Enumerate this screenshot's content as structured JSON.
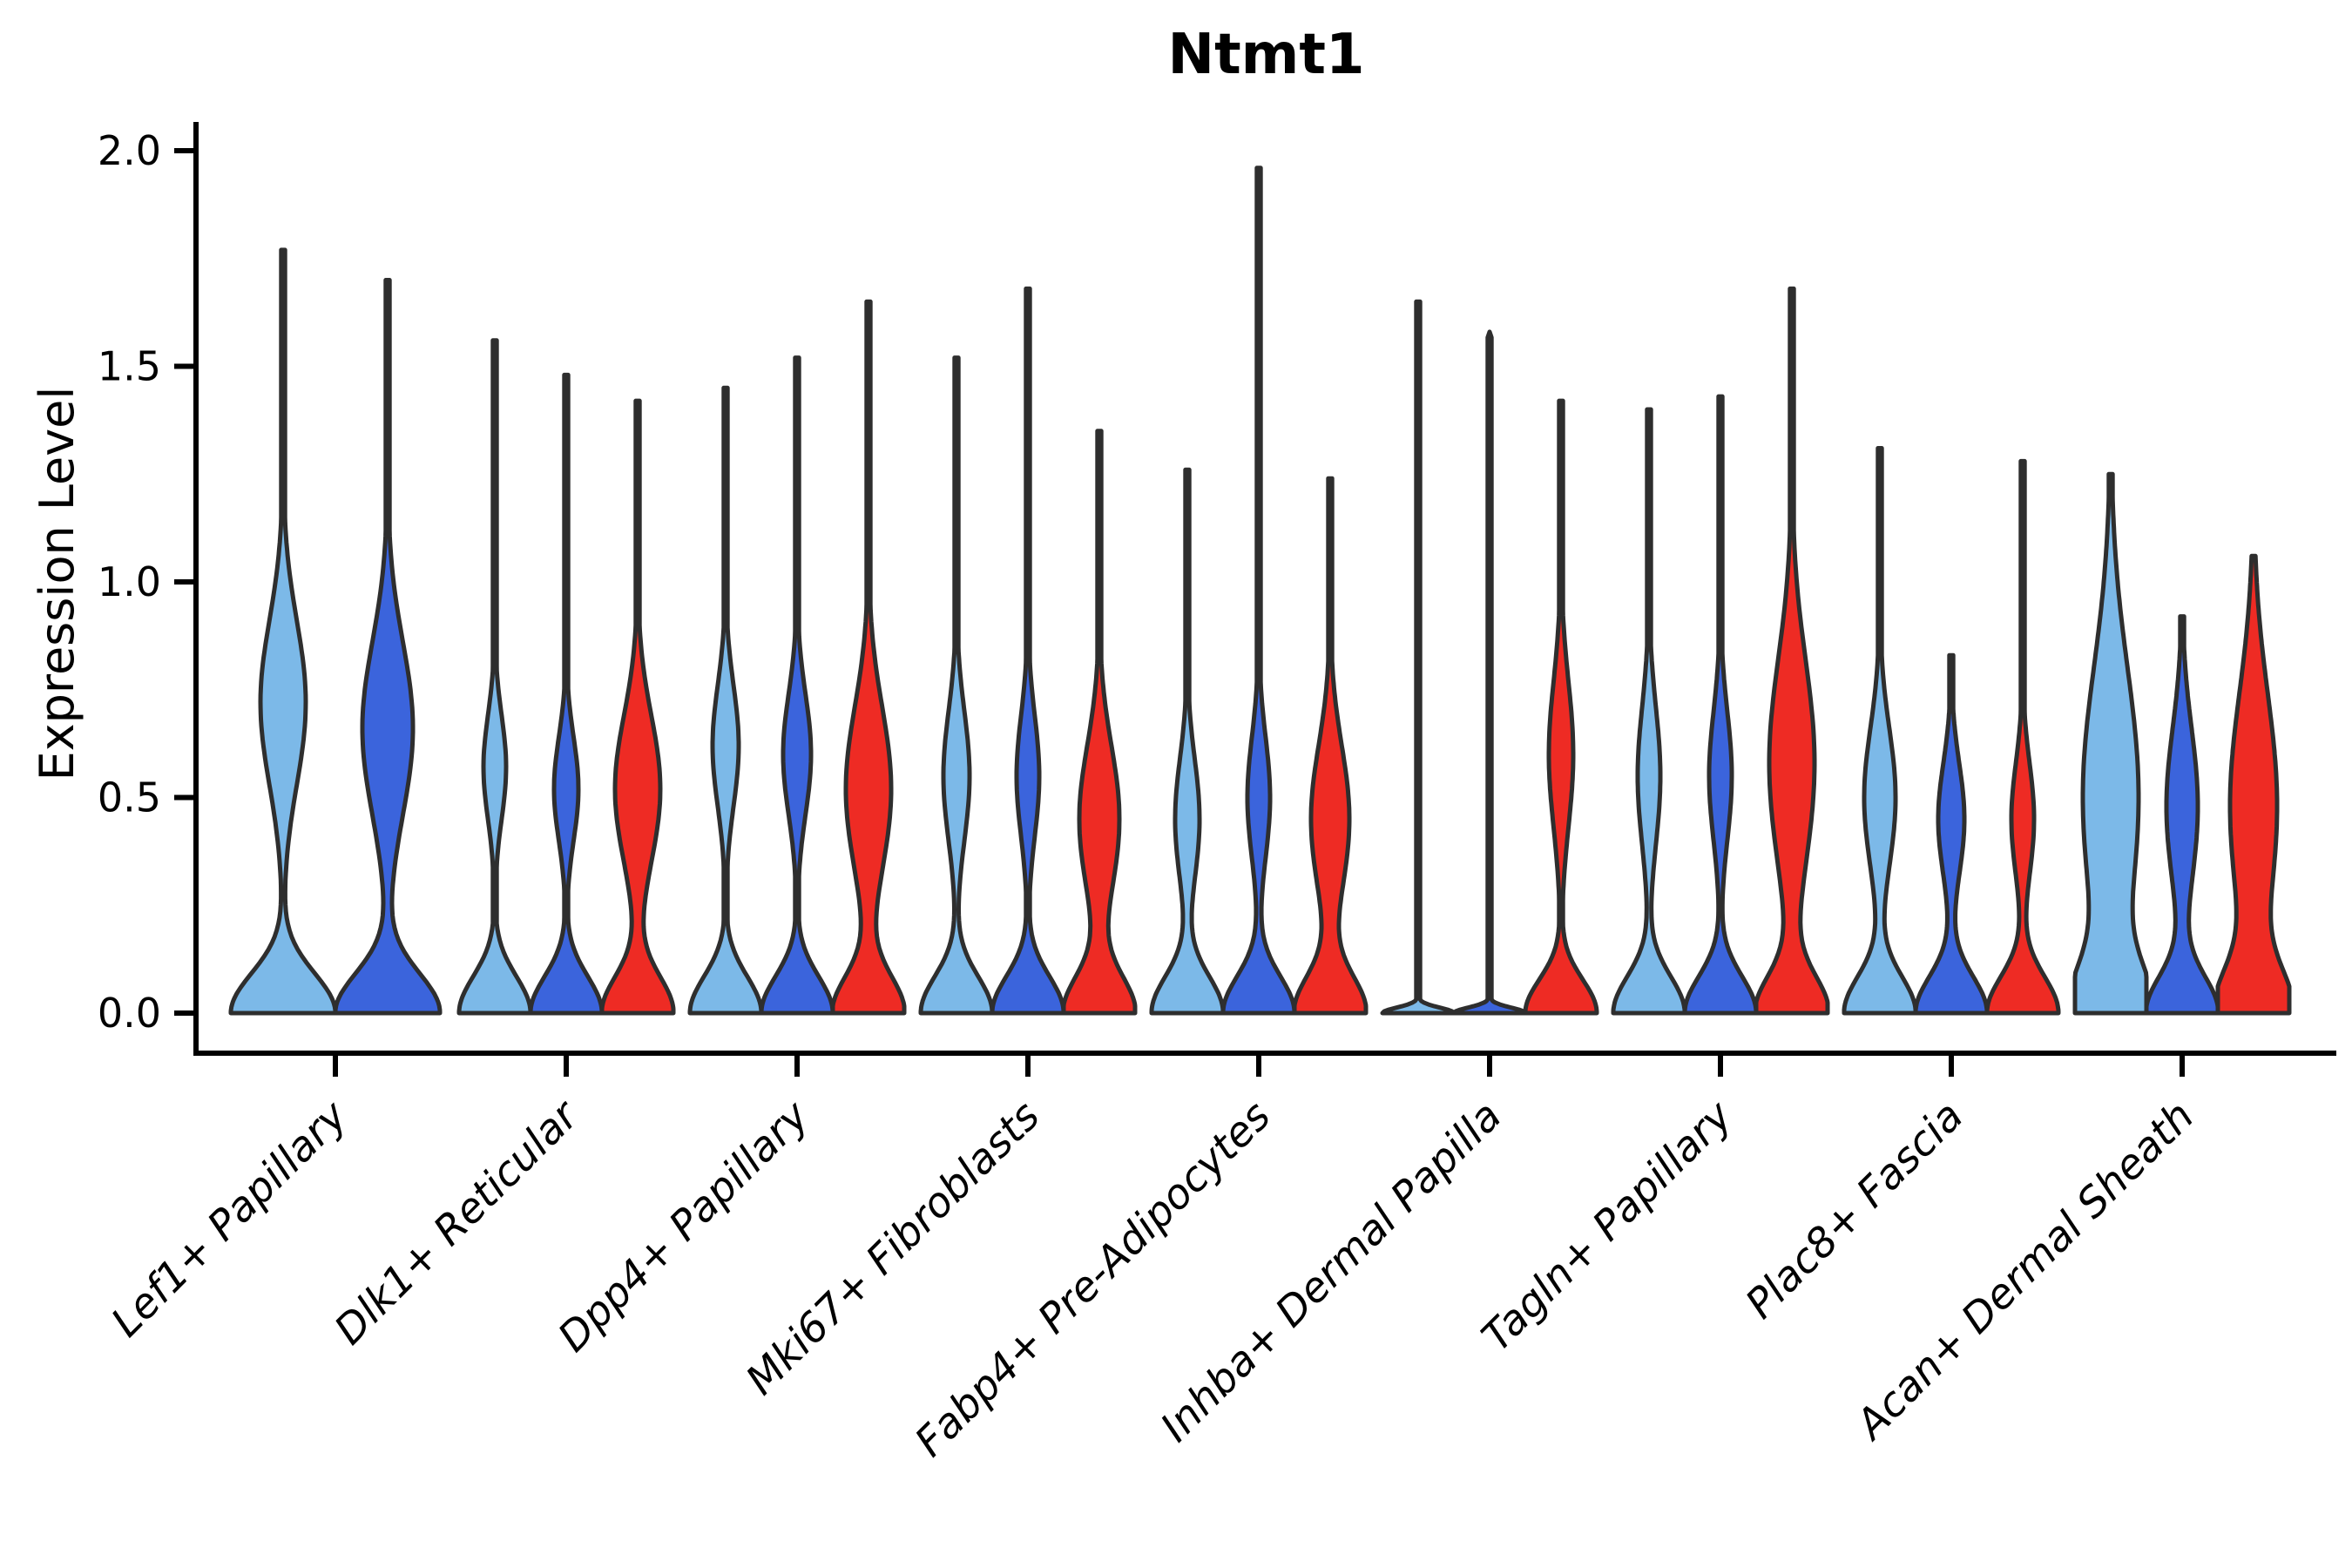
{
  "chart_data": {
    "type": "violin",
    "title": "Ntmt1",
    "ylabel": "Expression Level",
    "ylim": [
      0.0,
      2.0
    ],
    "grid": false,
    "legend": "none",
    "yticks": [
      {
        "label": "0.0",
        "value": 0.0
      },
      {
        "label": "0.5",
        "value": 0.5
      },
      {
        "label": "1.0",
        "value": 1.0
      },
      {
        "label": "1.5",
        "value": 1.5
      },
      {
        "label": "2.0",
        "value": 2.0
      }
    ],
    "categories": [
      "Lef1+ Papillary",
      "Dlk1+ Reticular",
      "Dpp4+ Papillary",
      "Mki67+ Fibroblasts",
      "Fabp4+ Pre-Adipocytes",
      "Inhba+ Dermal Papilla",
      "Tagln+ Papillary",
      "Plac8+ Fascia",
      "Acan+ Dermal Sheath"
    ],
    "split_colors": {
      "light_blue": "#7CB9E8",
      "dark_blue": "#3B64DC",
      "red": "#EE2B24"
    },
    "edge_color": "#2E2E2E",
    "axis_color": "#000000",
    "groups": [
      {
        "label": "Lef1+ Papillary",
        "violins": [
          {
            "split": "light_blue",
            "max": 1.77,
            "peak": 0.72,
            "peak_spread": 0.19,
            "peak_halfwidth": 26,
            "base_decay": 0.13,
            "base_halfwidth": 60
          },
          {
            "split": "dark_blue",
            "max": 1.7,
            "peak": 0.66,
            "peak_spread": 0.2,
            "peak_halfwidth": 29,
            "base_decay": 0.13,
            "base_halfwidth": 60
          }
        ]
      },
      {
        "label": "Dlk1+ Reticular",
        "violins": [
          {
            "split": "light_blue",
            "max": 1.56,
            "peak": 0.57,
            "peak_spread": 0.12,
            "peak_halfwidth": 13,
            "base_decay": 0.12,
            "base_halfwidth": 41
          },
          {
            "split": "dark_blue",
            "max": 1.48,
            "peak": 0.52,
            "peak_spread": 0.12,
            "peak_halfwidth": 14,
            "base_decay": 0.12,
            "base_halfwidth": 41
          },
          {
            "split": "red",
            "max": 1.42,
            "peak": 0.52,
            "peak_spread": 0.17,
            "peak_halfwidth": 26,
            "base_decay": 0.12,
            "base_halfwidth": 41
          }
        ]
      },
      {
        "label": "Dpp4+ Papillary",
        "violins": [
          {
            "split": "light_blue",
            "max": 1.45,
            "peak": 0.62,
            "peak_spread": 0.14,
            "peak_halfwidth": 15,
            "base_decay": 0.12,
            "base_halfwidth": 41
          },
          {
            "split": "dark_blue",
            "max": 1.52,
            "peak": 0.6,
            "peak_spread": 0.14,
            "peak_halfwidth": 16,
            "base_decay": 0.12,
            "base_halfwidth": 41
          },
          {
            "split": "red",
            "max": 1.65,
            "peak": 0.52,
            "peak_spread": 0.19,
            "peak_halfwidth": 26,
            "base_decay": 0.12,
            "base_halfwidth": 41
          }
        ]
      },
      {
        "label": "Mki67+ Fibroblasts",
        "violins": [
          {
            "split": "light_blue",
            "max": 1.52,
            "peak": 0.55,
            "peak_spread": 0.15,
            "peak_halfwidth": 15,
            "base_decay": 0.12,
            "base_halfwidth": 41
          },
          {
            "split": "dark_blue",
            "max": 1.68,
            "peak": 0.55,
            "peak_spread": 0.14,
            "peak_halfwidth": 13,
            "base_decay": 0.12,
            "base_halfwidth": 41
          },
          {
            "split": "red",
            "max": 1.35,
            "peak": 0.45,
            "peak_spread": 0.17,
            "peak_halfwidth": 23,
            "base_decay": 0.12,
            "base_halfwidth": 41
          }
        ]
      },
      {
        "label": "Fabp4+ Pre-Adipocytes",
        "violins": [
          {
            "split": "light_blue",
            "max": 1.26,
            "peak": 0.45,
            "peak_spread": 0.14,
            "peak_halfwidth": 14,
            "base_decay": 0.12,
            "base_halfwidth": 41
          },
          {
            "split": "dark_blue",
            "max": 1.96,
            "peak": 0.5,
            "peak_spread": 0.14,
            "peak_halfwidth": 13,
            "base_decay": 0.12,
            "base_halfwidth": 41
          },
          {
            "split": "red",
            "max": 1.24,
            "peak": 0.45,
            "peak_spread": 0.17,
            "peak_halfwidth": 22,
            "base_decay": 0.12,
            "base_halfwidth": 41
          }
        ]
      },
      {
        "label": "Inhba+ Dermal Papilla",
        "violins": [
          {
            "split": "light_blue",
            "max": 1.65,
            "peak": 0.0,
            "peak_spread": 1.0,
            "peak_halfwidth": 0,
            "base_decay": 0.018,
            "base_halfwidth": 41
          },
          {
            "split": "dark_blue",
            "max": 1.58,
            "peak": 0.0,
            "peak_spread": 1.0,
            "peak_halfwidth": 0,
            "base_decay": 0.018,
            "base_halfwidth": 41
          },
          {
            "split": "red",
            "max": 1.42,
            "peak": 0.6,
            "peak_spread": 0.17,
            "peak_halfwidth": 14,
            "base_decay": 0.11,
            "base_halfwidth": 41
          }
        ]
      },
      {
        "label": "Tagln+ Papillary",
        "violins": [
          {
            "split": "light_blue",
            "max": 1.4,
            "peak": 0.55,
            "peak_spread": 0.16,
            "peak_halfwidth": 13,
            "base_decay": 0.12,
            "base_halfwidth": 41
          },
          {
            "split": "dark_blue",
            "max": 1.43,
            "peak": 0.55,
            "peak_spread": 0.15,
            "peak_halfwidth": 13,
            "base_decay": 0.12,
            "base_halfwidth": 41
          },
          {
            "split": "red",
            "max": 1.68,
            "peak": 0.58,
            "peak_spread": 0.24,
            "peak_halfwidth": 26,
            "base_decay": 0.12,
            "base_halfwidth": 41
          }
        ]
      },
      {
        "label": "Plac8+ Fascia",
        "violins": [
          {
            "split": "light_blue",
            "max": 1.31,
            "peak": 0.5,
            "peak_spread": 0.16,
            "peak_halfwidth": 18,
            "base_decay": 0.12,
            "base_halfwidth": 41
          },
          {
            "split": "dark_blue",
            "max": 0.83,
            "peak": 0.45,
            "peak_spread": 0.13,
            "peak_halfwidth": 15,
            "base_decay": 0.12,
            "base_halfwidth": 41
          },
          {
            "split": "red",
            "max": 1.28,
            "peak": 0.45,
            "peak_spread": 0.13,
            "peak_halfwidth": 13,
            "base_decay": 0.12,
            "base_halfwidth": 41
          }
        ]
      },
      {
        "label": "Acan+ Dermal Sheath",
        "violins": [
          {
            "split": "light_blue",
            "max": 1.25,
            "peak": 0.5,
            "peak_spread": 0.3,
            "peak_halfwidth": 32,
            "base_decay": 0.15,
            "base_halfwidth": 41
          },
          {
            "split": "dark_blue",
            "max": 0.92,
            "peak": 0.48,
            "peak_spread": 0.18,
            "peak_halfwidth": 18,
            "base_decay": 0.12,
            "base_halfwidth": 41
          },
          {
            "split": "red",
            "max": 1.06,
            "peak": 0.48,
            "peak_spread": 0.26,
            "peak_halfwidth": 27,
            "base_decay": 0.14,
            "base_halfwidth": 41
          }
        ]
      }
    ]
  }
}
